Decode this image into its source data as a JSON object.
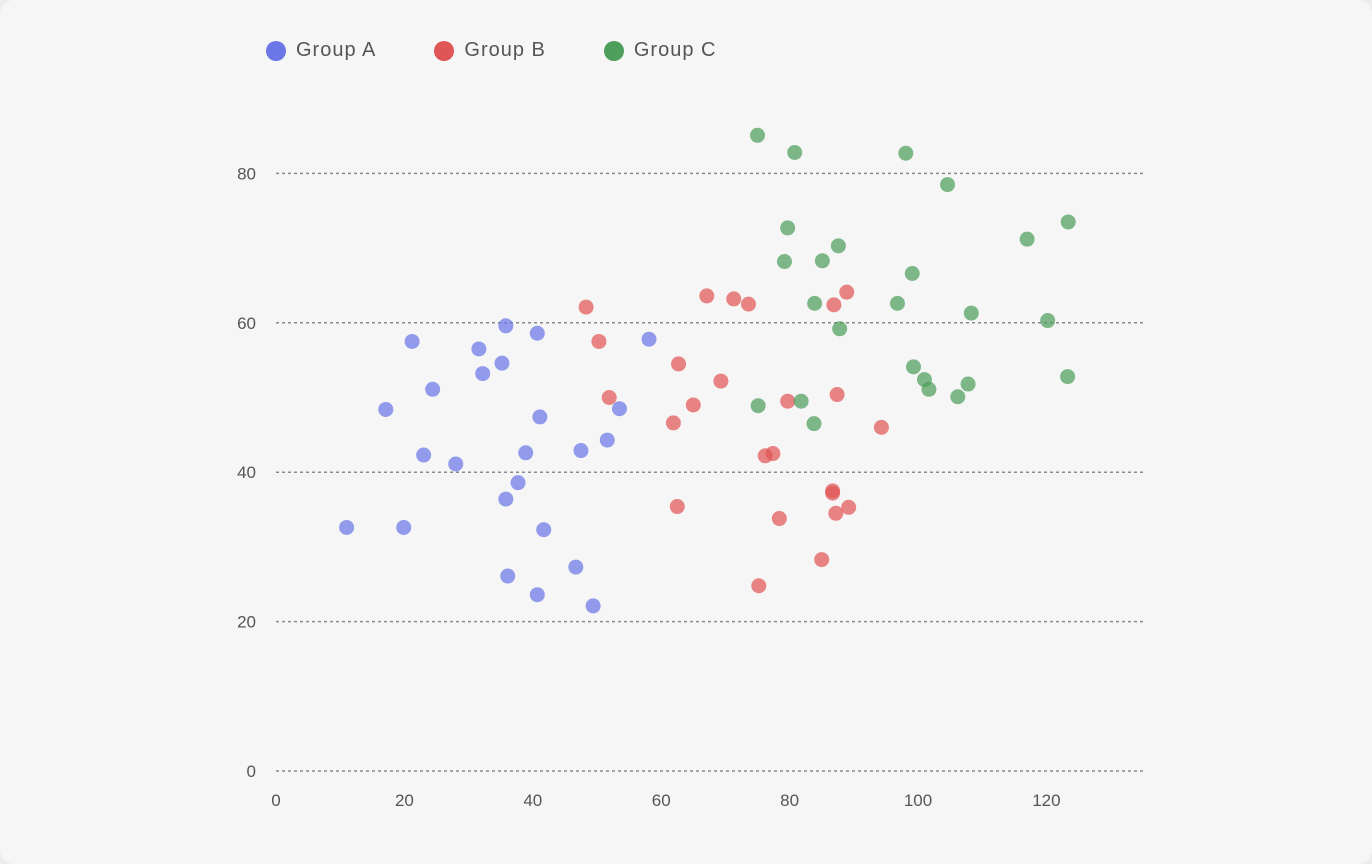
{
  "chart_data": {
    "type": "scatter",
    "title": "",
    "xlabel": "",
    "ylabel": "",
    "xlim": [
      0,
      135
    ],
    "ylim": [
      0,
      85
    ],
    "x_ticks": [
      0,
      20,
      40,
      60,
      80,
      100,
      120
    ],
    "y_ticks": [
      0,
      20,
      40,
      60,
      80
    ],
    "x_tick_labels": [
      "0",
      "20",
      "40",
      "60",
      "80",
      "100",
      "120"
    ],
    "y_tick_labels": [
      "0",
      "20",
      "40",
      "60",
      "80"
    ],
    "grid": "horizontal dotted",
    "legend_position": "top-left",
    "series": [
      {
        "name": "Group A",
        "color": "#6b77e6",
        "points": [
          [
            11,
            32.6
          ],
          [
            17.1,
            48.4
          ],
          [
            19.9,
            32.6
          ],
          [
            21.2,
            57.5
          ],
          [
            23,
            42.3
          ],
          [
            24.4,
            51.1
          ],
          [
            28,
            41.1
          ],
          [
            31.6,
            56.5
          ],
          [
            32.2,
            53.2
          ],
          [
            35.2,
            54.6
          ],
          [
            35.8,
            59.6
          ],
          [
            35.8,
            36.4
          ],
          [
            36.1,
            26.1
          ],
          [
            37.7,
            38.6
          ],
          [
            38.9,
            42.6
          ],
          [
            40.7,
            58.6
          ],
          [
            40.7,
            23.6
          ],
          [
            41.1,
            47.4
          ],
          [
            41.7,
            32.3
          ],
          [
            46.7,
            27.3
          ],
          [
            47.5,
            42.9
          ],
          [
            49.4,
            22.1
          ],
          [
            51.6,
            44.3
          ],
          [
            53.5,
            48.5
          ],
          [
            58.1,
            57.8
          ]
        ]
      },
      {
        "name": "Group B",
        "color": "#e05656",
        "points": [
          [
            48.3,
            62.1
          ],
          [
            50.3,
            57.5
          ],
          [
            51.9,
            50
          ],
          [
            61.9,
            46.6
          ],
          [
            62.5,
            35.4
          ],
          [
            62.7,
            54.5
          ],
          [
            65,
            49
          ],
          [
            67.1,
            63.6
          ],
          [
            69.3,
            52.2
          ],
          [
            71.3,
            63.2
          ],
          [
            73.6,
            62.5
          ],
          [
            75.2,
            24.8
          ],
          [
            76.2,
            42.2
          ],
          [
            77.4,
            42.5
          ],
          [
            78.4,
            33.8
          ],
          [
            79.7,
            49.5
          ],
          [
            85,
            28.3
          ],
          [
            86.7,
            37.5
          ],
          [
            86.7,
            37.2
          ],
          [
            86.9,
            62.4
          ],
          [
            87.2,
            34.5
          ],
          [
            87.4,
            50.4
          ],
          [
            88.9,
            64.1
          ],
          [
            89.2,
            35.3
          ],
          [
            94.3,
            46
          ]
        ]
      },
      {
        "name": "Group C",
        "color": "#4e9e5c",
        "points": [
          [
            75,
            85.1
          ],
          [
            75.1,
            48.9
          ],
          [
            79.2,
            68.2
          ],
          [
            79.7,
            72.7
          ],
          [
            80.8,
            82.8
          ],
          [
            81.8,
            49.5
          ],
          [
            83.8,
            46.5
          ],
          [
            83.9,
            62.6
          ],
          [
            85.1,
            68.3
          ],
          [
            87.6,
            70.3
          ],
          [
            87.8,
            59.2
          ],
          [
            96.8,
            62.6
          ],
          [
            98.1,
            82.7
          ],
          [
            99.1,
            66.6
          ],
          [
            99.3,
            54.1
          ],
          [
            101,
            52.4
          ],
          [
            101.7,
            51.1
          ],
          [
            104.6,
            78.5
          ],
          [
            106.2,
            50.1
          ],
          [
            107.8,
            51.8
          ],
          [
            108.3,
            61.3
          ],
          [
            117,
            71.2
          ],
          [
            120.2,
            60.3
          ],
          [
            123.3,
            52.8
          ],
          [
            123.4,
            73.5
          ]
        ]
      }
    ]
  }
}
